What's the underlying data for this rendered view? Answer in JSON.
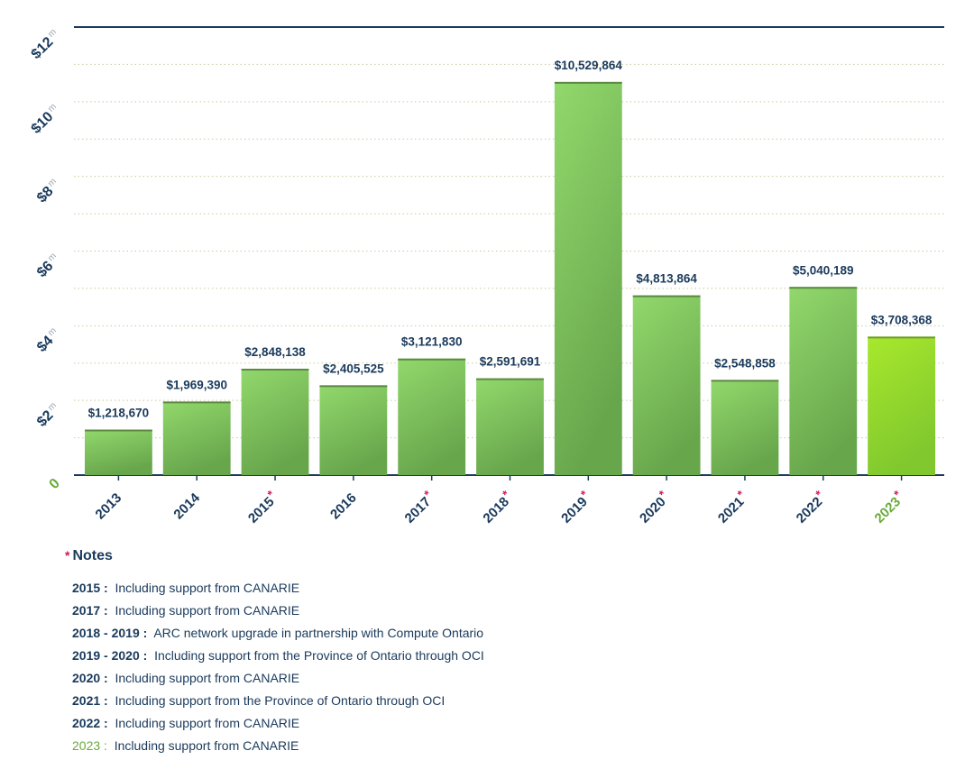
{
  "chart_data": {
    "type": "bar",
    "categories": [
      "2013",
      "2014",
      "2015",
      "2016",
      "2017",
      "2018",
      "2019",
      "2020",
      "2021",
      "2022",
      "2023"
    ],
    "values": [
      1218670,
      1969390,
      2848138,
      2405525,
      3121830,
      2591691,
      10529864,
      4813864,
      2548858,
      5040189,
      3708368
    ],
    "value_labels": [
      "$1,218,670",
      "$1,969,390",
      "$2,848,138",
      "$2,405,525",
      "$3,121,830",
      "$2,591,691",
      "$10,529,864",
      "$4,813,864",
      "$2,548,858",
      "$5,040,189",
      "$3,708,368"
    ],
    "starred": [
      false,
      false,
      true,
      false,
      true,
      true,
      true,
      true,
      true,
      true,
      true
    ],
    "highlight_index": 10,
    "ylim": [
      0,
      12000000
    ],
    "y_ticks": [
      {
        "value": 0,
        "label": "0",
        "suffix": ""
      },
      {
        "value": 2000000,
        "label": "$2",
        "suffix": "m"
      },
      {
        "value": 4000000,
        "label": "$4",
        "suffix": "m"
      },
      {
        "value": 6000000,
        "label": "$6",
        "suffix": "m"
      },
      {
        "value": 8000000,
        "label": "$8",
        "suffix": "m"
      },
      {
        "value": 10000000,
        "label": "$10",
        "suffix": "m"
      },
      {
        "value": 12000000,
        "label": "$12",
        "suffix": "m"
      }
    ],
    "grid": true,
    "xlabel": "",
    "ylabel": "",
    "title": ""
  },
  "colors": {
    "bar_top": "#8fd66a",
    "bar_bottom": "#6aa84f",
    "highlight_top": "#a6e62c",
    "highlight_bottom": "#7ecb2a",
    "navy": "#1a3a5c",
    "accent_green": "#6aaa3a",
    "star": "#d4145a",
    "grid": "#c9c9a0"
  },
  "notes": {
    "star": "*",
    "heading": "Notes",
    "items": [
      {
        "years": "2015 :",
        "text": "Including support from CANARIE"
      },
      {
        "years": "2017 :",
        "text": "Including support from CANARIE"
      },
      {
        "years": "2018 - 2019 :",
        "text": "ARC network upgrade in partnership with Compute Ontario"
      },
      {
        "years": "2019 - 2020 :",
        "text": "Including support from the Province of Ontario through OCI"
      },
      {
        "years": "2020 :",
        "text": "Including support from CANARIE"
      },
      {
        "years": "2021 :",
        "text": "Including support from the Province of Ontario through OCI"
      },
      {
        "years": "2022 :",
        "text": "Including support from CANARIE"
      },
      {
        "years": "2023 :",
        "text": "Including support from CANARIE"
      }
    ]
  }
}
